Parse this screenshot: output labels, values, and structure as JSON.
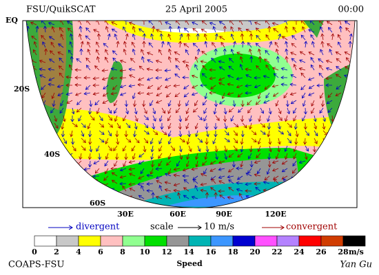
{
  "header": {
    "left": "FSU/QuikSCAT",
    "center": "25 April 2005",
    "right": "00:00"
  },
  "lat_labels": [
    "EQ",
    "20S",
    "40S",
    "60S"
  ],
  "lon_labels": [
    "30E",
    "60E",
    "90E",
    "120E"
  ],
  "legend": {
    "divergent": "divergent",
    "scale": "scale",
    "scale_value": "10 m/s",
    "convergent": "convergent"
  },
  "colorbar": {
    "ticks": [
      0,
      2,
      4,
      6,
      8,
      10,
      12,
      14,
      16,
      18,
      20,
      22,
      24,
      26,
      28
    ],
    "colors": [
      "#ffffff",
      "#c8c8c8",
      "#ffff00",
      "#ffc0c0",
      "#90ff90",
      "#00e000",
      "#969696",
      "#00b4b4",
      "#3c96ff",
      "#0000d0",
      "#ff50ff",
      "#b482ff",
      "#ff0000",
      "#d03c00",
      "#000000"
    ],
    "unit": "m/s",
    "label": "Speed"
  },
  "footer": {
    "left": "COAPS-FSU",
    "signature": "Yan Gu"
  }
}
